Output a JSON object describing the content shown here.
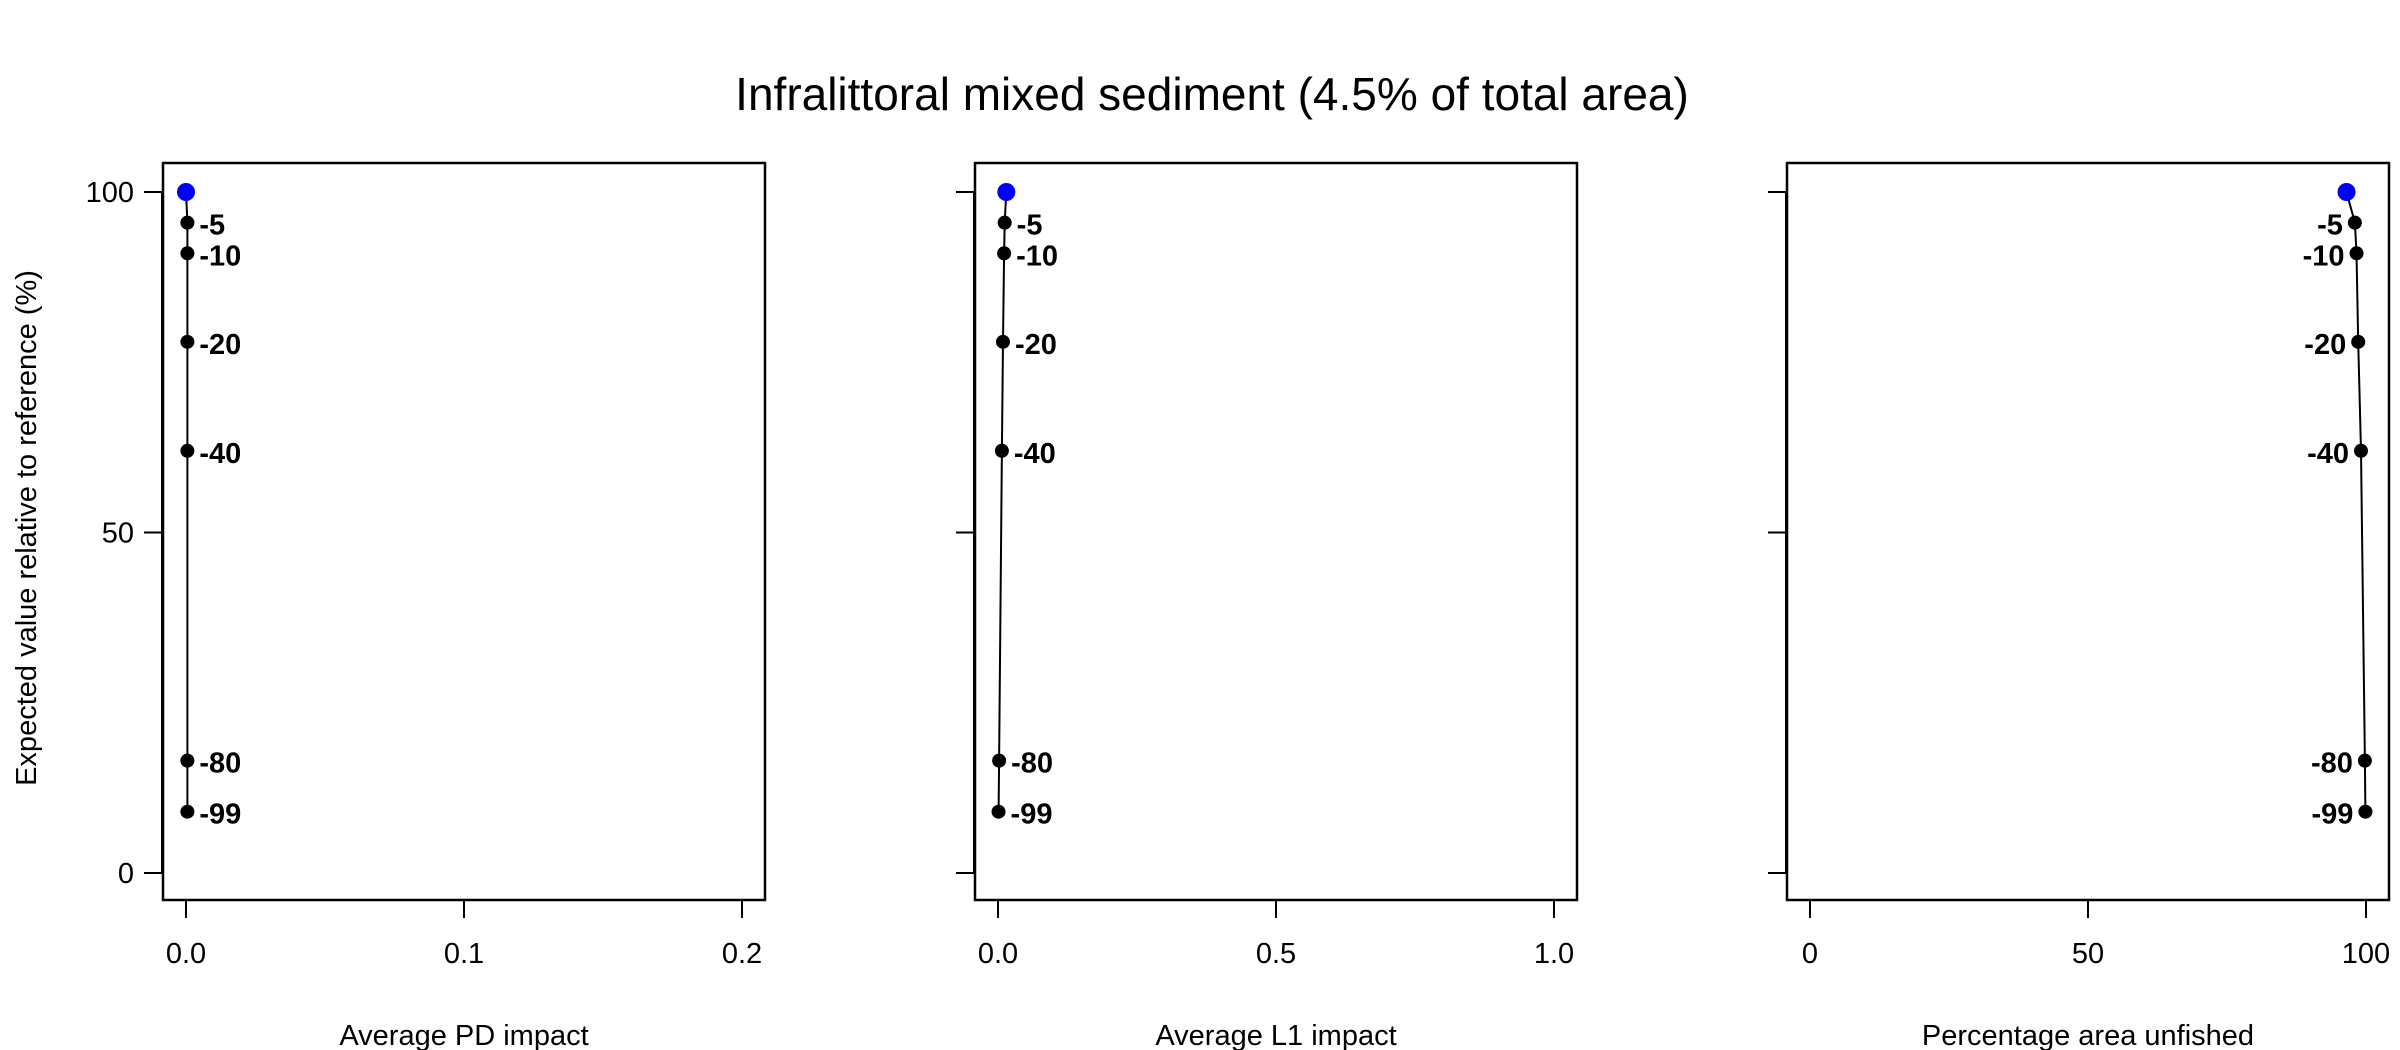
{
  "title": "Infralittoral mixed sediment (4.5% of total area)",
  "ylabel": "Expected value relative to reference (%)",
  "colors": {
    "points": "#000000",
    "reference_point": "#0000ff",
    "line": "#000000",
    "frame": "#000000"
  },
  "chart_data": [
    {
      "type": "line",
      "panel": 1,
      "xlabel": "Average PD impact",
      "xlim": [
        0,
        0.2
      ],
      "ylim": [
        0,
        100
      ],
      "xticks": [
        "0.0",
        "0.1",
        "0.2"
      ],
      "xtick_values": [
        0,
        0.1,
        0.2
      ],
      "yticks": [
        "0",
        "50",
        "100"
      ],
      "ytick_values": [
        0,
        50,
        100
      ],
      "label_side": "right",
      "points": [
        {
          "label": "",
          "x": 0.0,
          "y": 100,
          "reference": true
        },
        {
          "label": "-5",
          "x": 0.0005,
          "y": 95.5
        },
        {
          "label": "-10",
          "x": 0.0005,
          "y": 91
        },
        {
          "label": "-20",
          "x": 0.0005,
          "y": 78
        },
        {
          "label": "-40",
          "x": 0.0005,
          "y": 62
        },
        {
          "label": "-80",
          "x": 0.0005,
          "y": 16.5
        },
        {
          "label": "-99",
          "x": 0.0005,
          "y": 9
        }
      ]
    },
    {
      "type": "line",
      "panel": 2,
      "xlabel": "Average L1 impact",
      "xlim": [
        0,
        1
      ],
      "ylim": [
        0,
        100
      ],
      "xticks": [
        "0.0",
        "0.5",
        "1.0"
      ],
      "xtick_values": [
        0,
        0.5,
        1.0
      ],
      "yticks": [
        "",
        "",
        ""
      ],
      "ytick_values": [
        0,
        50,
        100
      ],
      "label_side": "right",
      "points": [
        {
          "label": "",
          "x": 0.015,
          "y": 100,
          "reference": true
        },
        {
          "label": "-5",
          "x": 0.012,
          "y": 95.5
        },
        {
          "label": "-10",
          "x": 0.011,
          "y": 91
        },
        {
          "label": "-20",
          "x": 0.009,
          "y": 78
        },
        {
          "label": "-40",
          "x": 0.007,
          "y": 62
        },
        {
          "label": "-80",
          "x": 0.002,
          "y": 16.5
        },
        {
          "label": "-99",
          "x": 0.001,
          "y": 9
        }
      ]
    },
    {
      "type": "line",
      "panel": 3,
      "xlabel": "Percentage area unfished",
      "xlim": [
        0,
        100
      ],
      "ylim": [
        0,
        100
      ],
      "xticks": [
        "0",
        "50",
        "100"
      ],
      "xtick_values": [
        0,
        50,
        100
      ],
      "yticks": [
        "",
        "",
        ""
      ],
      "ytick_values": [
        0,
        50,
        100
      ],
      "label_side": "left",
      "points": [
        {
          "label": "",
          "x": 96.5,
          "y": 100,
          "reference": true
        },
        {
          "label": "-5",
          "x": 98,
          "y": 95.5
        },
        {
          "label": "-10",
          "x": 98.3,
          "y": 91
        },
        {
          "label": "-20",
          "x": 98.6,
          "y": 78
        },
        {
          "label": "-40",
          "x": 99.1,
          "y": 62
        },
        {
          "label": "-80",
          "x": 99.8,
          "y": 16.5
        },
        {
          "label": "-99",
          "x": 99.9,
          "y": 9
        }
      ]
    }
  ]
}
